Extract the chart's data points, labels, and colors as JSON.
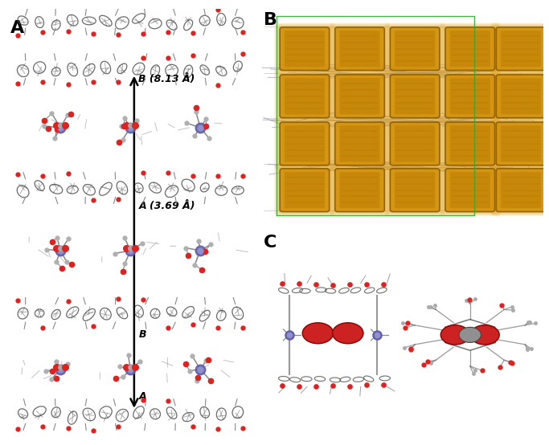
{
  "bg_color": "#ffffff",
  "label_A": "A",
  "label_B": "B",
  "label_C": "C",
  "label_fontsize": 16,
  "arrow_text_B813": "B (8.13 Å)",
  "arrow_text_A369": "A (3.69 Å)",
  "arrow_text_B": "B",
  "arrow_text_A": "A",
  "figure_width": 6.83,
  "figure_height": 5.54,
  "cage_color": "#d4920a",
  "cage_edge": "#8a5e00",
  "cage_inner": "#b87800",
  "wire_color": "#9090aa",
  "green_box": "#44aa44",
  "co2_red": "#cc2222",
  "co2_gray": "#909090",
  "aromatic_fill": "#c8c8c8",
  "aromatic_edge": "#505050",
  "amine_blue": "#6060aa",
  "stick_gray": "#888888",
  "red_oxygen": "#dd2222"
}
